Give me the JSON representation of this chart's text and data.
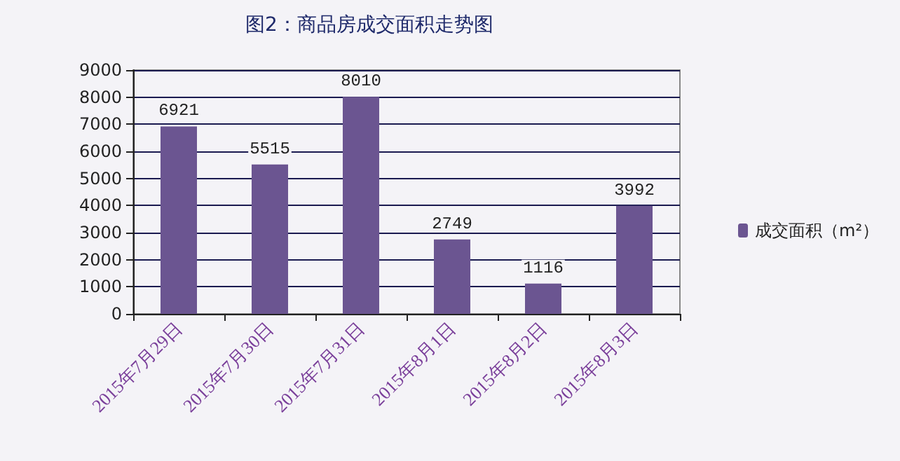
{
  "chart_data": {
    "type": "bar",
    "title": "图2：商品房成交面积走势图",
    "categories": [
      "2015年7月29日",
      "2015年7月30日",
      "2015年7月31日",
      "2015年8月1日",
      "2015年8月2日",
      "2015年8月3日"
    ],
    "series": [
      {
        "name": "成交面积（m²）",
        "color": "#6b5591",
        "values": [
          6921,
          5515,
          8010,
          2749,
          1116,
          3992
        ]
      }
    ],
    "ylim": [
      0,
      9000
    ],
    "yticks": [
      0,
      1000,
      2000,
      3000,
      4000,
      5000,
      6000,
      7000,
      8000,
      9000
    ],
    "grid": "y",
    "legend": "right",
    "data_labels": true
  }
}
